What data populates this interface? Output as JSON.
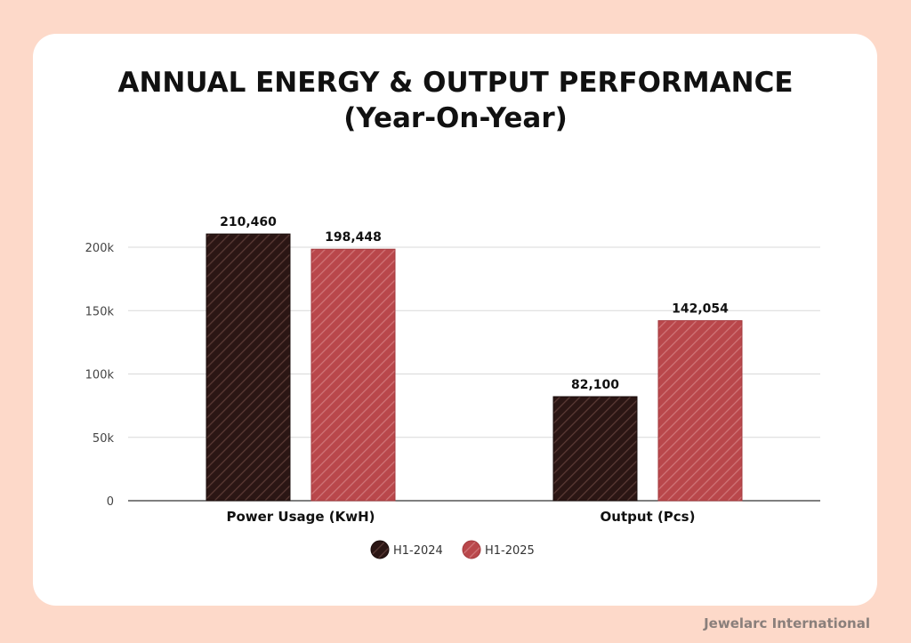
{
  "title_line1": "ANNUAL ENERGY & OUTPUT PERFORMANCE",
  "title_line2": "(Year-On-Year)",
  "footer": "Jewelarc International",
  "colors": {
    "background": "#fdd9c9",
    "card": "#ffffff",
    "series_2024": "#2b1614",
    "series_2025": "#b9474b",
    "grid": "#d9d9d9",
    "axis": "#333333"
  },
  "chart_data": {
    "type": "bar",
    "categories": [
      "Power Usage (KwH)",
      "Output (Pcs)"
    ],
    "series": [
      {
        "name": "H1-2024",
        "values": [
          210460,
          82100
        ],
        "labels": [
          "210,460",
          "82,100"
        ]
      },
      {
        "name": "H1-2025",
        "values": [
          198448,
          142054
        ],
        "labels": [
          "198,448",
          "142,054"
        ]
      }
    ],
    "yticks": [
      0,
      50000,
      100000,
      150000,
      200000
    ],
    "ytick_labels": [
      "0",
      "50k",
      "100k",
      "150k",
      "200k"
    ],
    "ylim": [
      0,
      200000
    ],
    "grid": true,
    "legend": "bottom-center",
    "pattern": "diagonal-stripes"
  }
}
